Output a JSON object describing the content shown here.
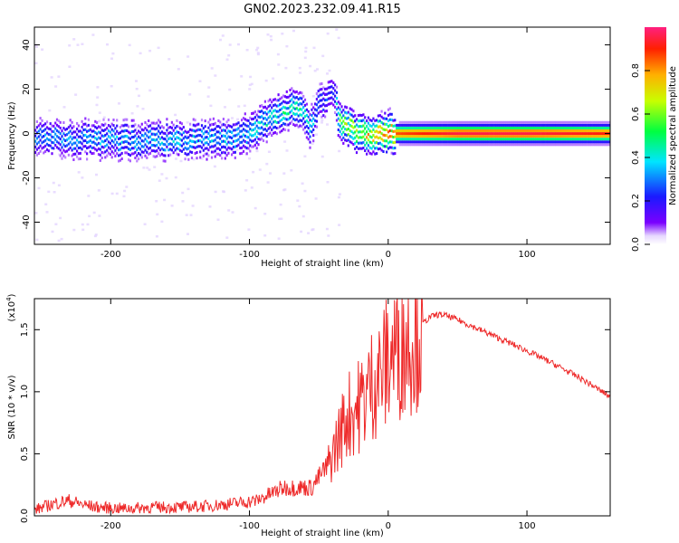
{
  "title": "GN02.2023.232.09.41.R15",
  "colors": {
    "snr_line": "#ee2a2a",
    "spectrogram_low": "#6a00ff",
    "spectrogram_high": "#ff0000"
  },
  "chart_data": [
    {
      "type": "heatmap",
      "title": "GN02.2023.232.09.41.R15",
      "xlabel": "Height of straight line (km)",
      "ylabel": "Frequency (Hz)",
      "colorbar_label": "Normalized spectral amplitude",
      "colorbar_ticks": [
        "0.0",
        "0.2",
        "0.4",
        "0.6",
        "0.8"
      ],
      "colorbar_range": [
        0,
        1
      ],
      "colormap": "rainbow (violet to red)",
      "xlim": [
        -255,
        160
      ],
      "ylim": [
        -50,
        48
      ],
      "xticks": [
        -200,
        -100,
        0,
        100
      ],
      "yticks": [
        -40,
        -20,
        0,
        20,
        40
      ],
      "signal_track": [
        {
          "x": -250,
          "y": -2,
          "amp": 0.3
        },
        {
          "x": -200,
          "y": -3,
          "amp": 0.35
        },
        {
          "x": -150,
          "y": -3,
          "amp": 0.35
        },
        {
          "x": -110,
          "y": -2,
          "amp": 0.35
        },
        {
          "x": -95,
          "y": 3,
          "amp": 0.4
        },
        {
          "x": -80,
          "y": 9,
          "amp": 0.45
        },
        {
          "x": -65,
          "y": 12,
          "amp": 0.45
        },
        {
          "x": -57,
          "y": 2,
          "amp": 0.4
        },
        {
          "x": -50,
          "y": 14,
          "amp": 0.3
        },
        {
          "x": -40,
          "y": 18,
          "amp": 0.2
        },
        {
          "x": -35,
          "y": 4,
          "amp": 0.6
        },
        {
          "x": -20,
          "y": 0,
          "amp": 0.7
        },
        {
          "x": 0,
          "y": 0,
          "amp": 0.85
        },
        {
          "x": 50,
          "y": 0,
          "amp": 0.95
        },
        {
          "x": 100,
          "y": 0,
          "amp": 0.95
        },
        {
          "x": 160,
          "y": 0,
          "amp": 0.9
        }
      ]
    },
    {
      "type": "line",
      "xlabel": "Height of straight line (km)",
      "ylabel": "SNR (10 * v/v)",
      "y_multiplier": "(x10",
      "y_multiplier_exp": "4",
      "y_multiplier_close": ")",
      "xlim": [
        -255,
        160
      ],
      "ylim": [
        0,
        1.75
      ],
      "xticks": [
        -200,
        -100,
        0,
        100
      ],
      "yticks": [
        "0.0",
        "0.5",
        "1.0",
        "1.5"
      ],
      "series": [
        {
          "x": [
            -255,
            -240,
            -230,
            -220,
            -210,
            -190,
            -170,
            -150,
            -130,
            -110,
            -95,
            -85,
            -75,
            -65,
            -55,
            -45,
            -40,
            -35,
            -30,
            -25,
            -20,
            -15,
            -10,
            -5,
            0,
            5,
            10,
            15,
            20,
            25,
            30,
            35,
            40,
            50,
            60,
            80,
            100,
            120,
            140,
            160
          ],
          "y": [
            0.03,
            0.08,
            0.1,
            0.07,
            0.05,
            0.04,
            0.05,
            0.05,
            0.06,
            0.08,
            0.1,
            0.15,
            0.2,
            0.2,
            0.2,
            0.35,
            0.5,
            0.65,
            0.8,
            0.85,
            0.9,
            1.0,
            1.1,
            1.15,
            1.25,
            1.35,
            1.4,
            1.45,
            1.5,
            1.55,
            1.6,
            1.62,
            1.62,
            1.58,
            1.53,
            1.43,
            1.33,
            1.22,
            1.1,
            0.96
          ]
        }
      ]
    }
  ]
}
